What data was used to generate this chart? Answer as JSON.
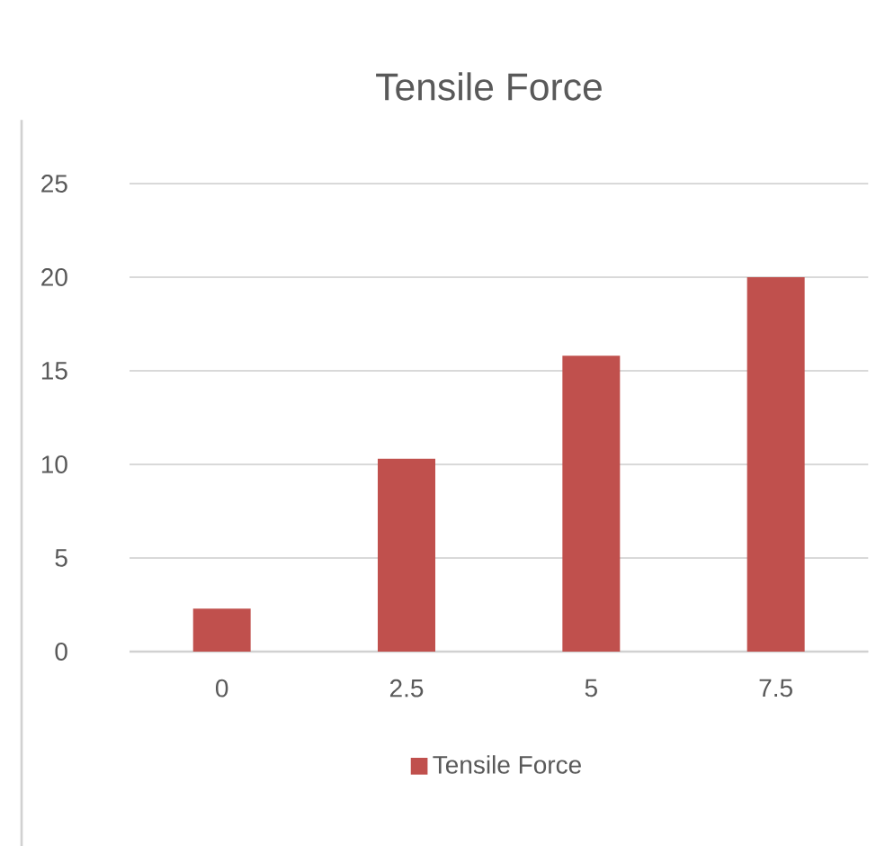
{
  "chart_data": {
    "type": "bar",
    "title": "Tensile Force",
    "categories": [
      "0",
      "2.5",
      "5",
      "7.5"
    ],
    "series": [
      {
        "name": "Tensile Force",
        "color": "#c0504d",
        "values": [
          2.3,
          10.3,
          15.8,
          20
        ]
      }
    ],
    "ylim": [
      0,
      25
    ],
    "yticks": [
      0,
      5,
      10,
      15,
      20,
      25
    ],
    "grid": "y",
    "legend": "bottom"
  }
}
